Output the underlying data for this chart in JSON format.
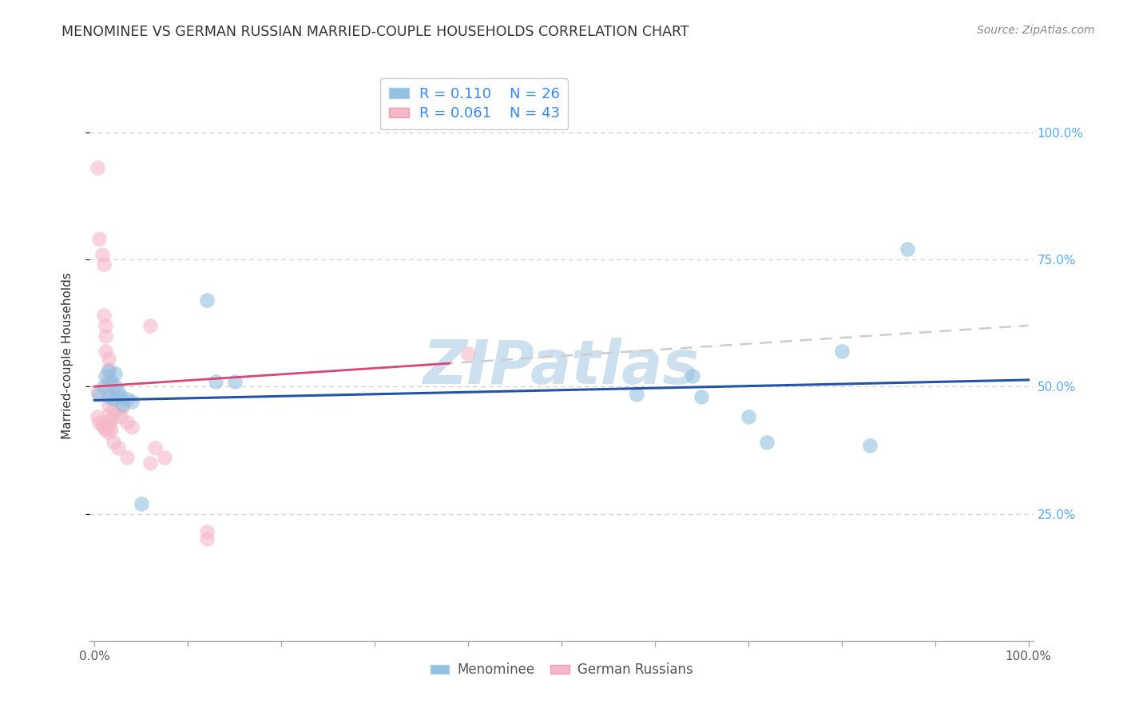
{
  "title": "MENOMINEE VS GERMAN RUSSIAN MARRIED-COUPLE HOUSEHOLDS CORRELATION CHART",
  "source": "Source: ZipAtlas.com",
  "ylabel": "Married-couple Households",
  "watermark": "ZIPatlas",
  "legend_blue_r": "0.110",
  "legend_blue_n": "26",
  "legend_pink_r": "0.061",
  "legend_pink_n": "43",
  "blue_points": [
    [
      0.005,
      0.485
    ],
    [
      0.01,
      0.5
    ],
    [
      0.012,
      0.52
    ],
    [
      0.015,
      0.53
    ],
    [
      0.015,
      0.48
    ],
    [
      0.018,
      0.51
    ],
    [
      0.02,
      0.475
    ],
    [
      0.022,
      0.525
    ],
    [
      0.022,
      0.5
    ],
    [
      0.025,
      0.49
    ],
    [
      0.028,
      0.48
    ],
    [
      0.03,
      0.465
    ],
    [
      0.035,
      0.475
    ],
    [
      0.04,
      0.47
    ],
    [
      0.05,
      0.27
    ],
    [
      0.12,
      0.67
    ],
    [
      0.13,
      0.51
    ],
    [
      0.15,
      0.51
    ],
    [
      0.58,
      0.485
    ],
    [
      0.64,
      0.52
    ],
    [
      0.65,
      0.48
    ],
    [
      0.7,
      0.44
    ],
    [
      0.72,
      0.39
    ],
    [
      0.8,
      0.57
    ],
    [
      0.83,
      0.385
    ],
    [
      0.87,
      0.77
    ]
  ],
  "pink_points": [
    [
      0.003,
      0.93
    ],
    [
      0.005,
      0.79
    ],
    [
      0.008,
      0.76
    ],
    [
      0.01,
      0.74
    ],
    [
      0.01,
      0.64
    ],
    [
      0.012,
      0.62
    ],
    [
      0.012,
      0.6
    ],
    [
      0.012,
      0.57
    ],
    [
      0.015,
      0.555
    ],
    [
      0.015,
      0.535
    ],
    [
      0.015,
      0.515
    ],
    [
      0.015,
      0.505
    ],
    [
      0.015,
      0.485
    ],
    [
      0.015,
      0.465
    ],
    [
      0.015,
      0.445
    ],
    [
      0.015,
      0.425
    ],
    [
      0.018,
      0.435
    ],
    [
      0.018,
      0.415
    ],
    [
      0.02,
      0.455
    ],
    [
      0.02,
      0.44
    ],
    [
      0.022,
      0.48
    ],
    [
      0.025,
      0.455
    ],
    [
      0.028,
      0.44
    ],
    [
      0.03,
      0.46
    ],
    [
      0.035,
      0.43
    ],
    [
      0.04,
      0.42
    ],
    [
      0.06,
      0.62
    ],
    [
      0.065,
      0.38
    ],
    [
      0.075,
      0.36
    ],
    [
      0.12,
      0.2
    ],
    [
      0.003,
      0.44
    ],
    [
      0.005,
      0.43
    ],
    [
      0.008,
      0.425
    ],
    [
      0.01,
      0.42
    ],
    [
      0.012,
      0.415
    ],
    [
      0.015,
      0.41
    ],
    [
      0.02,
      0.39
    ],
    [
      0.025,
      0.38
    ],
    [
      0.035,
      0.36
    ],
    [
      0.06,
      0.35
    ],
    [
      0.12,
      0.215
    ],
    [
      0.4,
      0.565
    ],
    [
      0.003,
      0.49
    ]
  ],
  "blue_color": "#92c0e0",
  "pink_color": "#f5b8c8",
  "blue_line_color": "#2255aa",
  "pink_line_color": "#dd4477",
  "trend_dash_color": "#cccccc",
  "background_color": "#ffffff",
  "grid_color": "#cccccc",
  "title_color": "#333333",
  "source_color": "#888888",
  "ylabel_color": "#333333",
  "right_tick_color": "#55aaff",
  "bottom_tick_color": "#666666",
  "watermark_color": "#cce0f0"
}
